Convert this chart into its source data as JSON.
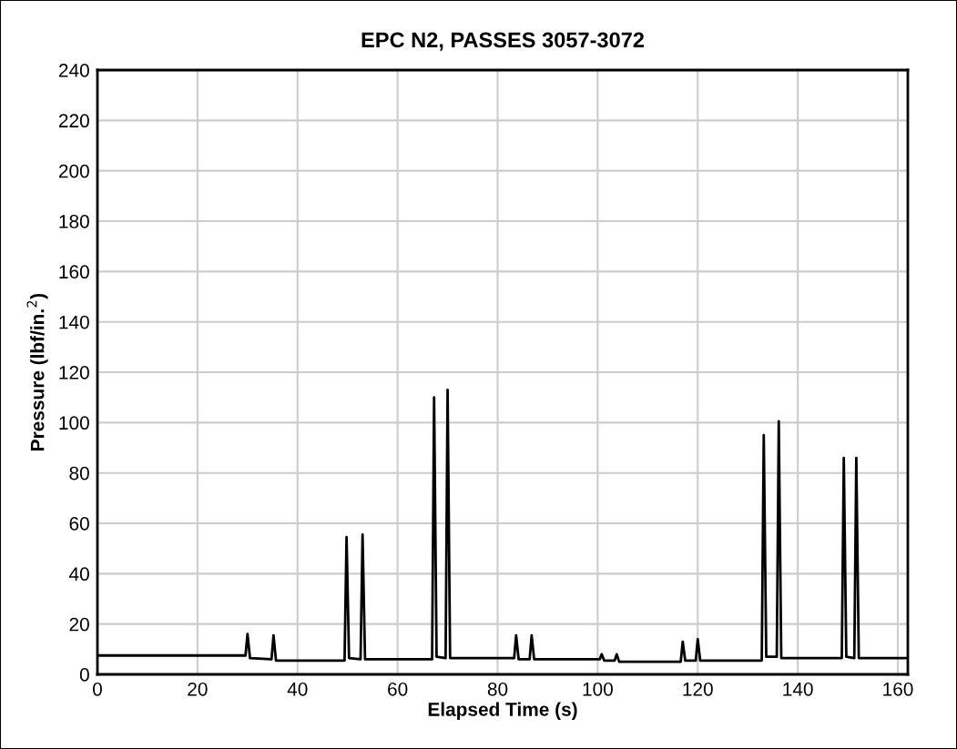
{
  "chart_data": {
    "type": "line",
    "title": "EPC N2, PASSES 3057-3072",
    "xlabel": "Elapsed Time (s)",
    "ylabel": "Pressure (lbf/in.$^{2}$)",
    "series": [
      {
        "color": "#000000",
        "x": [
          0,
          29.6,
          30,
          30.5,
          34.8,
          35.2,
          35.7,
          49.4,
          49.8,
          50.3,
          52.6,
          53,
          53.5,
          66.9,
          67.3,
          67.8,
          69.6,
          70,
          70.5,
          83.3,
          83.7,
          84.2,
          86.4,
          86.8,
          87.3,
          100.4,
          100.8,
          101.3,
          103.4,
          103.8,
          104.3,
          116.6,
          117,
          117.5,
          119.6,
          120,
          120.5,
          132.8,
          133.2,
          133.7,
          135.8,
          136.2,
          136.7,
          148.8,
          149.2,
          149.7,
          151.3,
          151.7,
          152.2,
          162
        ],
        "values": [
          7.5,
          7.5,
          16,
          6.5,
          6,
          15.5,
          5.5,
          5.5,
          54.5,
          6.5,
          6,
          55.5,
          6,
          6,
          110,
          7,
          6.5,
          113,
          6.5,
          6.5,
          15.5,
          6,
          6,
          15.5,
          6,
          6,
          8,
          5.5,
          5.5,
          8,
          5,
          5,
          13,
          5.5,
          5.5,
          14,
          5.5,
          5.5,
          95,
          7,
          7,
          100.5,
          6.5,
          6.5,
          86,
          7,
          6.5,
          86,
          6.5,
          6.5
        ]
      }
    ],
    "xlim": [
      0,
      162
    ],
    "xticks": [
      0,
      20,
      40,
      60,
      80,
      100,
      120,
      140,
      160
    ],
    "ylim": [
      0,
      240
    ],
    "yticks": [
      0,
      20,
      40,
      60,
      80,
      100,
      120,
      140,
      160,
      180,
      200,
      220,
      240
    ],
    "grid": true,
    "legend": false,
    "marker": "none",
    "line_style": "solid"
  }
}
